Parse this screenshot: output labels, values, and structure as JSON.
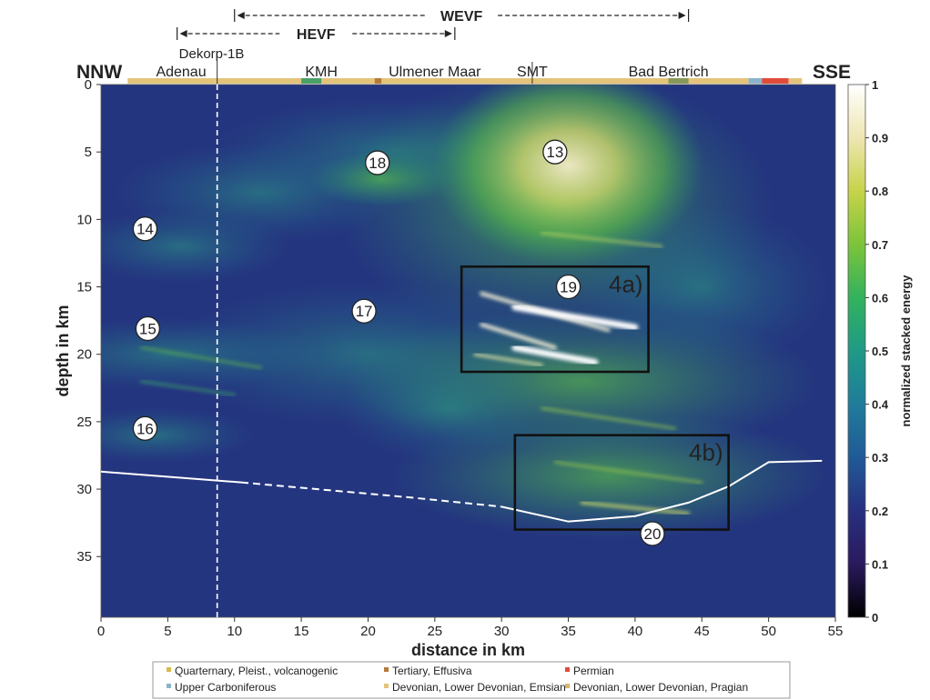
{
  "chart_data": {
    "type": "heatmap",
    "xlabel": "distance in km",
    "ylabel": "depth in km",
    "xlim": [
      0,
      55
    ],
    "ylim": [
      0,
      39.5
    ],
    "y_inverted": true,
    "xticks": [
      0,
      5,
      10,
      15,
      20,
      25,
      30,
      35,
      40,
      45,
      50,
      55
    ],
    "yticks": [
      0,
      5,
      10,
      15,
      20,
      25,
      30,
      35
    ],
    "colorbar": {
      "label": "normalized stacked energy",
      "ticks": [
        "0",
        "0.1",
        "0.2",
        "0.3",
        "0.4",
        "0.5",
        "0.6",
        "0.7",
        "0.8",
        "0.9",
        "1"
      ],
      "colors": [
        "#000000",
        "#2a1a5e",
        "#27307f",
        "#205a96",
        "#1f7c9b",
        "#1f9a86",
        "#33b25d",
        "#7cc43a",
        "#c7d34a",
        "#eee6b2",
        "#ffffff"
      ]
    },
    "orientation": {
      "left": "NNW",
      "right": "SSE"
    },
    "faults": [
      {
        "label": "WEVF",
        "x_start": 10,
        "x_end": 44
      },
      {
        "label": "HEVF",
        "x_start": 5.7,
        "x_end": 26.5
      }
    ],
    "vertical_line": {
      "label": "Dekorp-1B",
      "x": 8.7
    },
    "top_labels": [
      {
        "text": "Adenau",
        "x": 6
      },
      {
        "text": "KMH",
        "x": 16.5
      },
      {
        "text": "Ulmener Maar",
        "x": 25
      },
      {
        "text": "SMT",
        "x": 32.3
      },
      {
        "text": "Bad Bertrich",
        "x": 42.5
      }
    ],
    "moho": {
      "solid_left": [
        [
          0,
          28.7
        ],
        [
          10.5,
          29.5
        ]
      ],
      "dashed": [
        [
          10.5,
          29.5
        ],
        [
          23,
          30.6
        ],
        [
          30,
          31.3
        ]
      ],
      "solid_right": [
        [
          30,
          31.3
        ],
        [
          35,
          32.4
        ],
        [
          40,
          32.0
        ],
        [
          44,
          31.0
        ],
        [
          47,
          29.8
        ],
        [
          50,
          28.0
        ],
        [
          54,
          27.9
        ]
      ]
    },
    "markers": [
      {
        "label": "13",
        "x": 34,
        "y": 5.0
      },
      {
        "label": "14",
        "x": 3.3,
        "y": 10.7
      },
      {
        "label": "15",
        "x": 3.5,
        "y": 18.1
      },
      {
        "label": "16",
        "x": 3.3,
        "y": 25.5
      },
      {
        "label": "17",
        "x": 19.7,
        "y": 16.8
      },
      {
        "label": "18",
        "x": 20.7,
        "y": 5.8
      },
      {
        "label": "19",
        "x": 35,
        "y": 15.0
      },
      {
        "label": "20",
        "x": 41.3,
        "y": 33.3
      }
    ],
    "boxes": [
      {
        "label": "4a)",
        "x0": 27,
        "x1": 41,
        "y0": 13.5,
        "y1": 21.3
      },
      {
        "label": "4b)",
        "x0": 31,
        "x1": 47,
        "y0": 26.0,
        "y1": 33.0
      }
    ],
    "legend": [
      {
        "label": "Quarternary, Pleist., volcanogenic",
        "color": "#d7b94a"
      },
      {
        "label": "Tertiary, Effusiva",
        "color": "#b5793a"
      },
      {
        "label": "Permian",
        "color": "#e14b3c"
      },
      {
        "label": "Upper Carboniferous",
        "color": "#8bb4cc"
      },
      {
        "label": "Devonian, Lower Devonian, Emsian",
        "color": "#e3c47a"
      },
      {
        "label": "Devonian, Lower Devonian, Pragian",
        "color": "#d9b56a"
      }
    ],
    "geology_bar": [
      {
        "x0": 2,
        "x1": 48.5,
        "color": "#e3c47a"
      },
      {
        "x0": 20.5,
        "x1": 21.0,
        "color": "#b5793a"
      },
      {
        "x0": 15,
        "x1": 16.5,
        "color": "#4aa069"
      },
      {
        "x0": 48.5,
        "x1": 49.5,
        "color": "#8bb4cc"
      },
      {
        "x0": 49.5,
        "x1": 51.5,
        "color": "#e14b3c"
      },
      {
        "x0": 51.5,
        "x1": 52.5,
        "color": "#e3c47a"
      }
    ]
  }
}
